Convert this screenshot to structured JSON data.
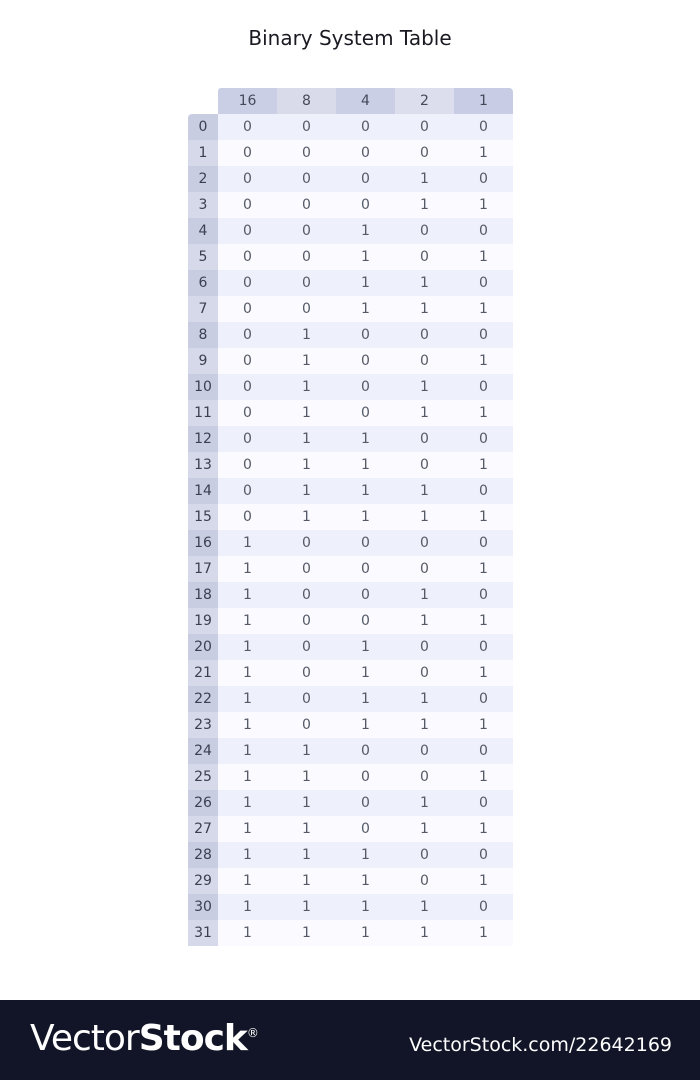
{
  "chart_data": {
    "type": "table",
    "title": "Binary System Table",
    "columns": [
      "16",
      "8",
      "4",
      "2",
      "1"
    ],
    "rows": [
      {
        "label": "0",
        "bits": [
          0,
          0,
          0,
          0,
          0
        ]
      },
      {
        "label": "1",
        "bits": [
          0,
          0,
          0,
          0,
          1
        ]
      },
      {
        "label": "2",
        "bits": [
          0,
          0,
          0,
          1,
          0
        ]
      },
      {
        "label": "3",
        "bits": [
          0,
          0,
          0,
          1,
          1
        ]
      },
      {
        "label": "4",
        "bits": [
          0,
          0,
          1,
          0,
          0
        ]
      },
      {
        "label": "5",
        "bits": [
          0,
          0,
          1,
          0,
          1
        ]
      },
      {
        "label": "6",
        "bits": [
          0,
          0,
          1,
          1,
          0
        ]
      },
      {
        "label": "7",
        "bits": [
          0,
          0,
          1,
          1,
          1
        ]
      },
      {
        "label": "8",
        "bits": [
          0,
          1,
          0,
          0,
          0
        ]
      },
      {
        "label": "9",
        "bits": [
          0,
          1,
          0,
          0,
          1
        ]
      },
      {
        "label": "10",
        "bits": [
          0,
          1,
          0,
          1,
          0
        ]
      },
      {
        "label": "11",
        "bits": [
          0,
          1,
          0,
          1,
          1
        ]
      },
      {
        "label": "12",
        "bits": [
          0,
          1,
          1,
          0,
          0
        ]
      },
      {
        "label": "13",
        "bits": [
          0,
          1,
          1,
          0,
          1
        ]
      },
      {
        "label": "14",
        "bits": [
          0,
          1,
          1,
          1,
          0
        ]
      },
      {
        "label": "15",
        "bits": [
          0,
          1,
          1,
          1,
          1
        ]
      },
      {
        "label": "16",
        "bits": [
          1,
          0,
          0,
          0,
          0
        ]
      },
      {
        "label": "17",
        "bits": [
          1,
          0,
          0,
          0,
          1
        ]
      },
      {
        "label": "18",
        "bits": [
          1,
          0,
          0,
          1,
          0
        ]
      },
      {
        "label": "19",
        "bits": [
          1,
          0,
          0,
          1,
          1
        ]
      },
      {
        "label": "20",
        "bits": [
          1,
          0,
          1,
          0,
          0
        ]
      },
      {
        "label": "21",
        "bits": [
          1,
          0,
          1,
          0,
          1
        ]
      },
      {
        "label": "22",
        "bits": [
          1,
          0,
          1,
          1,
          0
        ]
      },
      {
        "label": "23",
        "bits": [
          1,
          0,
          1,
          1,
          1
        ]
      },
      {
        "label": "24",
        "bits": [
          1,
          1,
          0,
          0,
          0
        ]
      },
      {
        "label": "25",
        "bits": [
          1,
          1,
          0,
          0,
          1
        ]
      },
      {
        "label": "26",
        "bits": [
          1,
          1,
          0,
          1,
          0
        ]
      },
      {
        "label": "27",
        "bits": [
          1,
          1,
          0,
          1,
          1
        ]
      },
      {
        "label": "28",
        "bits": [
          1,
          1,
          1,
          0,
          0
        ]
      },
      {
        "label": "29",
        "bits": [
          1,
          1,
          1,
          0,
          1
        ]
      },
      {
        "label": "30",
        "bits": [
          1,
          1,
          1,
          1,
          0
        ]
      },
      {
        "label": "31",
        "bits": [
          1,
          1,
          1,
          1,
          1
        ]
      }
    ]
  },
  "colors": {
    "header_cells": [
      "#cbcfe6",
      "#d9dbea",
      "#cbcfe6",
      "#dcdeed",
      "#c8cce4"
    ],
    "row_label_a": "#c9cde2",
    "row_label_b": "#d6d9ea",
    "row_a": "#eef0fb",
    "row_b": "#fbfbff",
    "footer_bg": "#121527"
  },
  "watermark": {
    "logo_light": "Vector",
    "logo_bold": "Stock",
    "logo_mark": "®",
    "url": "VectorStock.com/22642169"
  }
}
